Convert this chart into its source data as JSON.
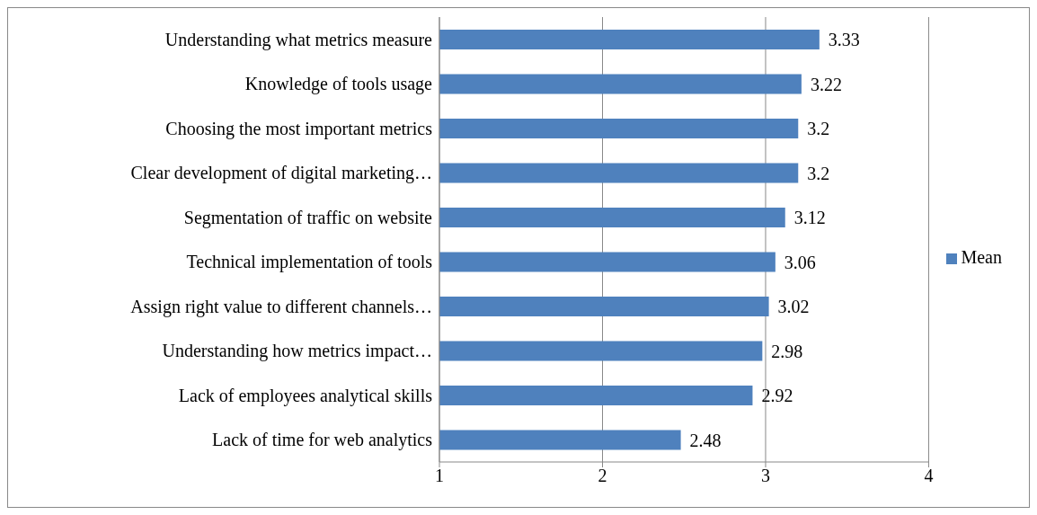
{
  "chart_data": {
    "type": "bar",
    "orientation": "horizontal",
    "categories": [
      "Understanding what metrics measure",
      "Knowledge of tools usage",
      "Choosing the most important metrics",
      "Clear development of digital marketing…",
      "Segmentation of traffic on website",
      "Technical implementation of tools",
      "Assign right value to different channels…",
      "Understanding how metrics impact…",
      "Lack of employees analytical skills",
      "Lack of time for web analytics"
    ],
    "series": [
      {
        "name": "Mean",
        "color": "#4f81bd",
        "values": [
          3.33,
          3.22,
          3.2,
          3.2,
          3.12,
          3.06,
          3.02,
          2.98,
          2.92,
          2.48
        ]
      }
    ],
    "xlim": [
      1,
      4
    ],
    "xticks": [
      1,
      2,
      3,
      4
    ],
    "grid": "x",
    "legend": "right",
    "data_labels": true
  }
}
